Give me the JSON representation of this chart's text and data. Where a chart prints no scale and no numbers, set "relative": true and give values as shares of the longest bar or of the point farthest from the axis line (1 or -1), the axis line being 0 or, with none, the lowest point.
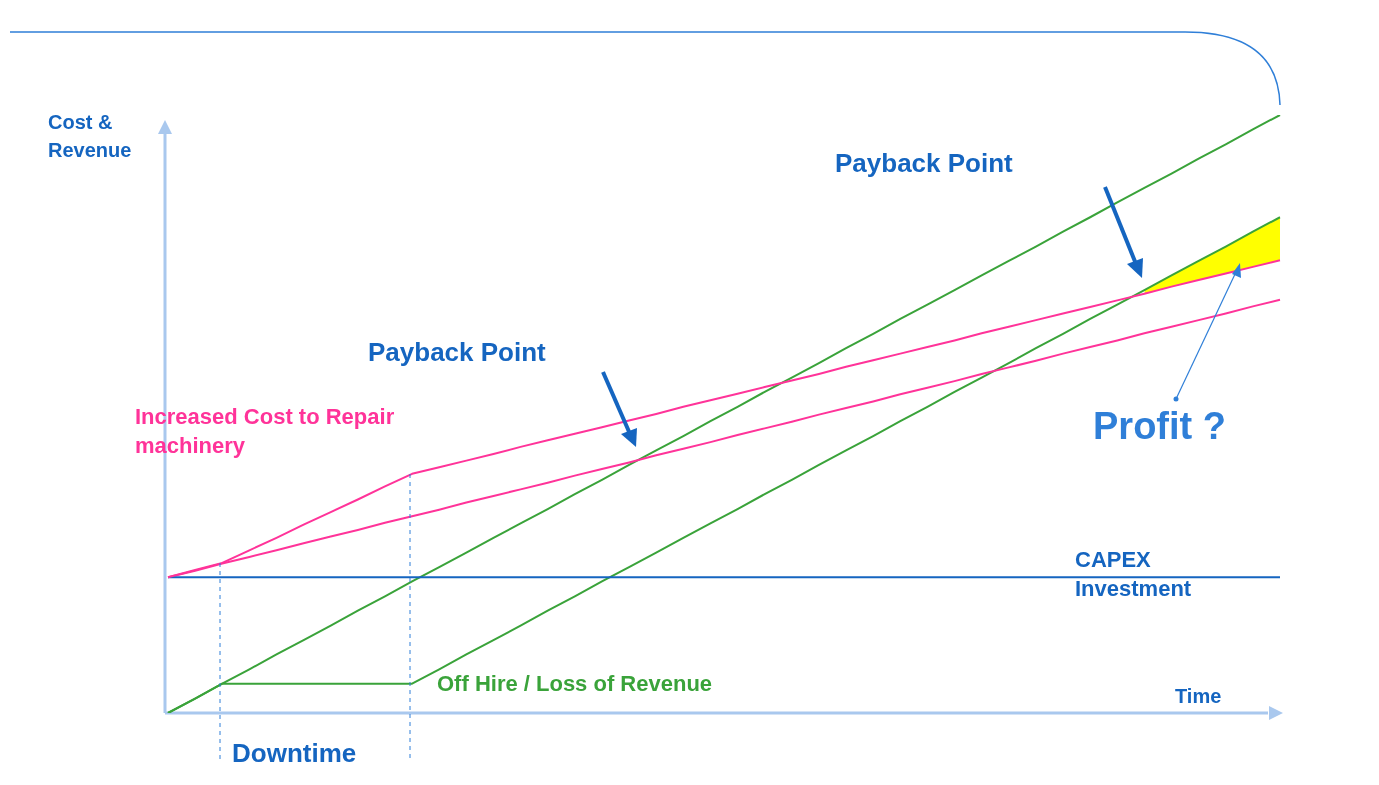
{
  "chart_data": {
    "type": "line",
    "relative": true,
    "xlabel": "Time",
    "ylabel": "Cost & Revenue",
    "legend": false,
    "tick_labels": false,
    "marker": "none",
    "categories": [
      null,
      null,
      null,
      null,
      null,
      null,
      null,
      null,
      null,
      null,
      null,
      null,
      null,
      null,
      null,
      null,
      null,
      null,
      null,
      null,
      null,
      null,
      null,
      null,
      null,
      null,
      null,
      null,
      null,
      null,
      null,
      null,
      null,
      null,
      null,
      null,
      null,
      null,
      null,
      null,
      null,
      null
    ],
    "series": [
      {
        "type": "area",
        "color": "#ffff00",
        "values": [
          null,
          null,
          null,
          null,
          null,
          null,
          null,
          null,
          null,
          null,
          null,
          null,
          null,
          null,
          null,
          null,
          null,
          null,
          null,
          null,
          null,
          null,
          null,
          null,
          null,
          null,
          null,
          null,
          null,
          null,
          null,
          null,
          null,
          null,
          null,
          null,
          0.707,
          0.732,
          0.756,
          0.78,
          0.805,
          0.829
        ]
      },
      {
        "type": "line",
        "color": "#ff3399",
        "values": [
          0.227,
          0.239,
          0.251,
          0.272,
          0.293,
          0.315,
          0.336,
          0.357,
          0.379,
          0.4,
          0.411,
          0.422,
          0.433,
          0.445,
          0.456,
          0.467,
          0.478,
          0.489,
          0.5,
          0.512,
          0.523,
          0.534,
          0.545,
          0.556,
          0.567,
          0.579,
          0.59,
          0.601,
          0.612,
          0.623,
          0.635,
          0.646,
          0.657,
          0.668,
          0.679,
          0.69,
          0.701,
          0.713,
          0.724,
          0.735,
          0.746,
          0.757
        ]
      },
      {
        "type": "line",
        "color": "#1565c0",
        "values": [
          0.227,
          0.227,
          0.227,
          0.227,
          0.227,
          0.227,
          0.227,
          0.227,
          0.227,
          0.227,
          0.227,
          0.227,
          0.227,
          0.227,
          0.227,
          0.227,
          0.227,
          0.227,
          0.227,
          0.227,
          0.227,
          0.227,
          0.227,
          0.227,
          0.227,
          0.227,
          0.227,
          0.227,
          0.227,
          0.227,
          0.227,
          0.227,
          0.227,
          0.227,
          0.227,
          0.227,
          0.227,
          0.227,
          0.227,
          0.227,
          0.227,
          0.227
        ]
      },
      {
        "type": "line",
        "color": "#ff3399",
        "values": [
          0.227,
          0.238,
          0.25,
          0.261,
          0.272,
          0.284,
          0.295,
          0.306,
          0.318,
          0.329,
          0.34,
          0.352,
          0.363,
          0.374,
          0.385,
          0.397,
          0.408,
          0.419,
          0.431,
          0.442,
          0.453,
          0.465,
          0.476,
          0.487,
          0.499,
          0.51,
          0.521,
          0.533,
          0.544,
          0.555,
          0.567,
          0.578,
          0.589,
          0.601,
          0.612,
          0.623,
          0.635,
          0.646,
          0.657,
          0.668,
          0.68,
          0.691
        ]
      },
      {
        "type": "line",
        "color": "#3aa33a",
        "values": [
          0,
          0.024,
          0.049,
          0.073,
          0.098,
          0.122,
          0.146,
          0.171,
          0.195,
          0.22,
          0.244,
          0.268,
          0.293,
          0.317,
          0.341,
          0.366,
          0.39,
          0.415,
          0.439,
          0.463,
          0.488,
          0.512,
          0.537,
          0.561,
          0.585,
          0.61,
          0.634,
          0.659,
          0.683,
          0.707,
          0.732,
          0.756,
          0.78,
          0.805,
          0.829,
          0.854,
          0.878,
          0.902,
          0.927,
          0.951,
          0.976,
          1
        ]
      },
      {
        "type": "line",
        "color": "#3aa33a",
        "values": [
          0,
          0.024,
          0.049,
          0.049,
          0.049,
          0.049,
          0.049,
          0.049,
          0.049,
          0.049,
          0.073,
          0.098,
          0.122,
          0.146,
          0.171,
          0.195,
          0.22,
          0.244,
          0.268,
          0.293,
          0.317,
          0.341,
          0.366,
          0.39,
          0.415,
          0.439,
          0.463,
          0.488,
          0.512,
          0.537,
          0.561,
          0.585,
          0.61,
          0.634,
          0.659,
          0.683,
          0.707,
          0.732,
          0.756,
          0.78,
          0.805,
          0.829
        ]
      }
    ],
    "annotations": [
      "Payback Point",
      "Payback Point",
      "Increased Cost to Repair machinery",
      "Off Hire / Loss of Revenue",
      "CAPEX Investment",
      "Profit ?",
      "Downtime"
    ]
  }
}
